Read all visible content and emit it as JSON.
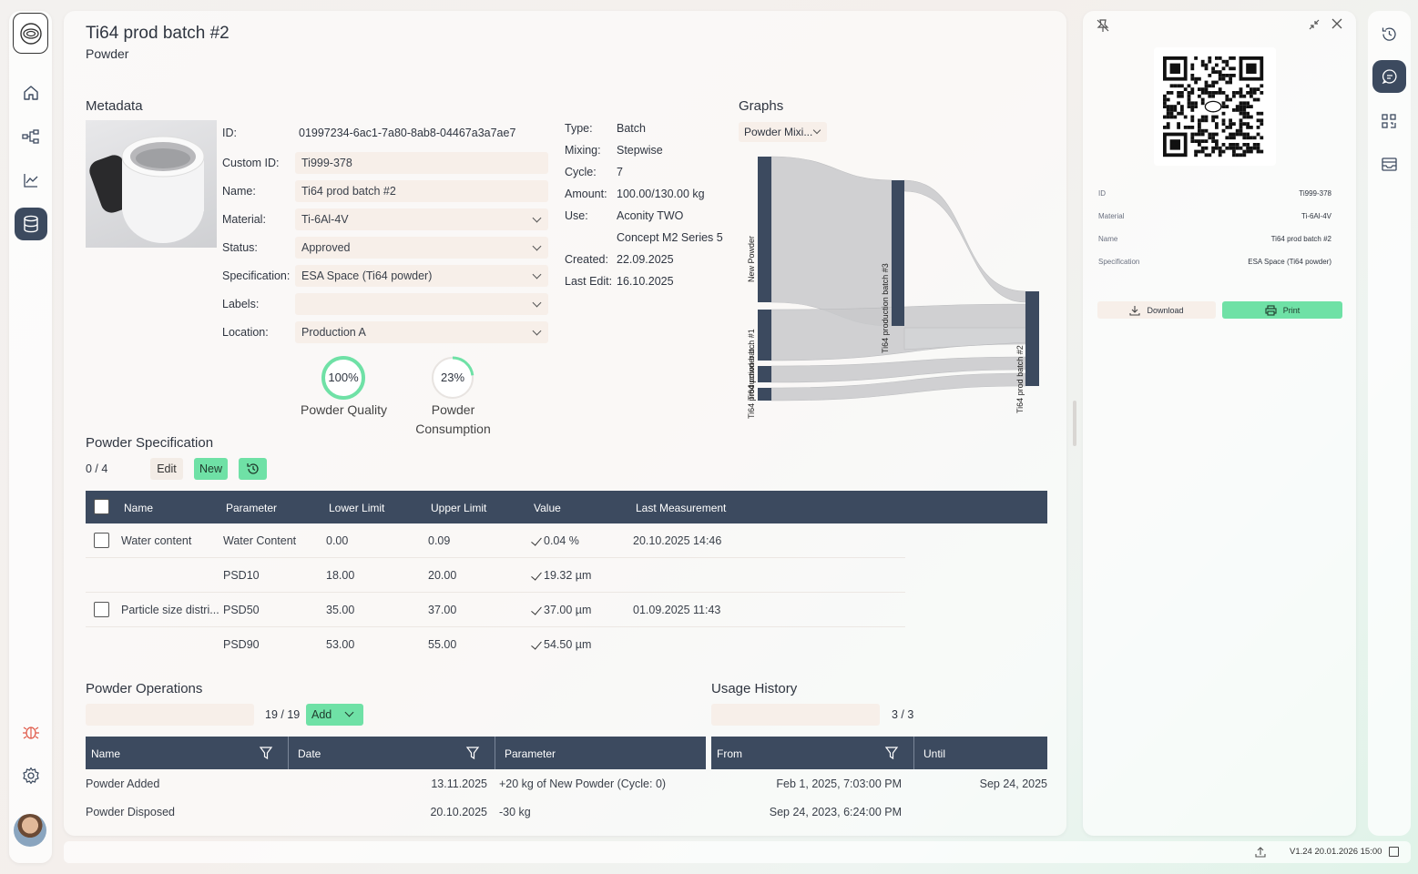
{
  "app": {
    "version": "V1.24 20.01.2026 15:00"
  },
  "header": {
    "title": "Ti64 prod batch #2",
    "subtitle": "Powder"
  },
  "metadata": {
    "section_title": "Metadata",
    "id_label": "ID:",
    "id_value": "01997234-6ac1-7a80-8ab8-04467a3a7ae7",
    "custom_id_label": "Custom ID:",
    "custom_id_value": "Ti999-378",
    "name_label": "Name:",
    "name_value": "Ti64 prod batch #2",
    "material_label": "Material:",
    "material_value": "Ti-6Al-4V",
    "status_label": "Status:",
    "status_value": "Approved",
    "spec_label": "Specification:",
    "spec_value": "ESA Space (Ti64 powder)",
    "labels_label": "Labels:",
    "labels_value": "",
    "location_label": "Location:",
    "location_value": "Production A",
    "type_label": "Type:",
    "type_value": "Batch",
    "mixing_label": "Mixing:",
    "mixing_value": "Stepwise",
    "cycle_label": "Cycle:",
    "cycle_value": "7",
    "amount_label": "Amount:",
    "amount_value": "100.00/130.00 kg",
    "use_label": "Use:",
    "use_value_1": "Aconity TWO",
    "use_value_2": "Concept M2 Series 5",
    "created_label": "Created:",
    "created_value": "22.09.2025",
    "last_edit_label": "Last Edit:",
    "last_edit_value": "16.10.2025"
  },
  "gauges": [
    {
      "value_text": "100%",
      "fraction": 1.0,
      "label_1": "Powder Quality",
      "label_2": ""
    },
    {
      "value_text": "23%",
      "fraction": 0.23,
      "label_1": "Powder",
      "label_2": "Consumption"
    }
  ],
  "graphs": {
    "section_title": "Graphs",
    "dropdown_value": "Powder Mixi...",
    "nodes": [
      "New Powder",
      "Ti64 production batch #3",
      "Ti64 prod batch #2",
      "Ti64 production batch #1",
      "Ti64 powder b..."
    ]
  },
  "spec": {
    "section_title": "Powder Specification",
    "count": "0 / 4",
    "edit_label": "Edit",
    "new_label": "New",
    "columns": [
      "Name",
      "Parameter",
      "Lower Limit",
      "Upper Limit",
      "Value",
      "Last Measurement"
    ],
    "rows": [
      {
        "name": "Water content",
        "parameter": "Water Content",
        "lower": "0.00",
        "upper": "0.09",
        "value": "0.04 %",
        "last": "20.10.2025 14:46"
      },
      {
        "name": "",
        "parameter": "PSD10",
        "lower": "18.00",
        "upper": "20.00",
        "value": "19.32 µm",
        "last": ""
      },
      {
        "name": "Particle size distri...",
        "parameter": "PSD50",
        "lower": "35.00",
        "upper": "37.00",
        "value": "37.00 µm",
        "last": "01.09.2025 11:43"
      },
      {
        "name": "",
        "parameter": "PSD90",
        "lower": "53.00",
        "upper": "55.00",
        "value": "54.50 µm",
        "last": ""
      }
    ]
  },
  "operations": {
    "section_title": "Powder Operations",
    "count": "19 / 19",
    "add_label": "Add",
    "columns": [
      "Name",
      "Date",
      "Parameter"
    ],
    "rows": [
      {
        "name": "Powder Added",
        "date": "13.11.2025",
        "parameter": "+20 kg of New Powder (Cycle: 0)"
      },
      {
        "name": "Powder Disposed",
        "date": "20.10.2025",
        "parameter": "-30 kg"
      }
    ]
  },
  "usage": {
    "section_title": "Usage History",
    "count": "3 / 3",
    "columns": [
      "From",
      "Until"
    ],
    "rows": [
      {
        "from": "Feb 1, 2025, 7:03:00 PM",
        "until": "Sep 24, 2025"
      },
      {
        "from": "Sep 24, 2023, 6:24:00 PM",
        "until": ""
      }
    ]
  },
  "sidepanel": {
    "fields": [
      {
        "label": "ID",
        "value": "Ti999-378"
      },
      {
        "label": "Material",
        "value": "Ti-6Al-4V"
      },
      {
        "label": "Name",
        "value": "Ti64 prod batch #2"
      },
      {
        "label": "Specification",
        "value": "ESA Space (Ti64 powder)"
      }
    ],
    "download_label": "Download",
    "print_label": "Print"
  },
  "colors": {
    "accent_green": "#6fe1a6",
    "header_dark": "#3c4a5f",
    "field_bg": "#f7efe9"
  }
}
